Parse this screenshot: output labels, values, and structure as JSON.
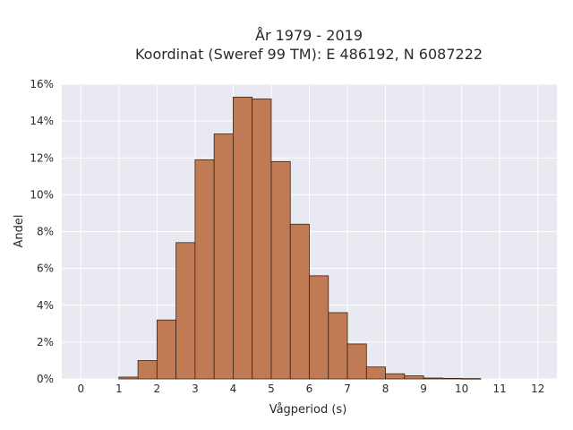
{
  "chart_data": {
    "type": "bar",
    "title_line1": "År 1979 - 2019",
    "title_line2": "Koordinat (Sweref 99 TM): E 486192, N 6087222",
    "xlabel": "Vågperiod (s)",
    "ylabel": "Andel",
    "xlim": [
      -0.5,
      12.5
    ],
    "ylim": [
      0,
      0.16
    ],
    "x_ticks": [
      0,
      1,
      2,
      3,
      4,
      5,
      6,
      7,
      8,
      9,
      10,
      11,
      12
    ],
    "x_tick_labels": [
      "0",
      "1",
      "2",
      "3",
      "4",
      "5",
      "6",
      "7",
      "8",
      "9",
      "10",
      "11",
      "12"
    ],
    "y_ticks": [
      0,
      0.02,
      0.04,
      0.06,
      0.08,
      0.1,
      0.12,
      0.14,
      0.16
    ],
    "y_tick_labels": [
      "0%",
      "2%",
      "4%",
      "6%",
      "8%",
      "10%",
      "12%",
      "14%",
      "16%"
    ],
    "bin_width": 0.5,
    "bins": [
      {
        "start": 1.0,
        "value": 0.001
      },
      {
        "start": 1.5,
        "value": 0.01
      },
      {
        "start": 2.0,
        "value": 0.032
      },
      {
        "start": 2.5,
        "value": 0.074
      },
      {
        "start": 3.0,
        "value": 0.119
      },
      {
        "start": 3.5,
        "value": 0.133
      },
      {
        "start": 4.0,
        "value": 0.153
      },
      {
        "start": 4.5,
        "value": 0.152
      },
      {
        "start": 5.0,
        "value": 0.118
      },
      {
        "start": 5.5,
        "value": 0.084
      },
      {
        "start": 6.0,
        "value": 0.056
      },
      {
        "start": 6.5,
        "value": 0.036
      },
      {
        "start": 7.0,
        "value": 0.019
      },
      {
        "start": 7.5,
        "value": 0.0065
      },
      {
        "start": 8.0,
        "value": 0.0028
      },
      {
        "start": 8.5,
        "value": 0.0017
      },
      {
        "start": 9.0,
        "value": 0.0005
      },
      {
        "start": 9.5,
        "value": 0.0003
      },
      {
        "start": 10.0,
        "value": 0.0002
      }
    ],
    "grid": true,
    "colors": {
      "bar_fill": "#c07a54",
      "bar_stroke": "#3a2418",
      "plot_background": "#e9e9f1",
      "grid": "#ffffff"
    }
  }
}
